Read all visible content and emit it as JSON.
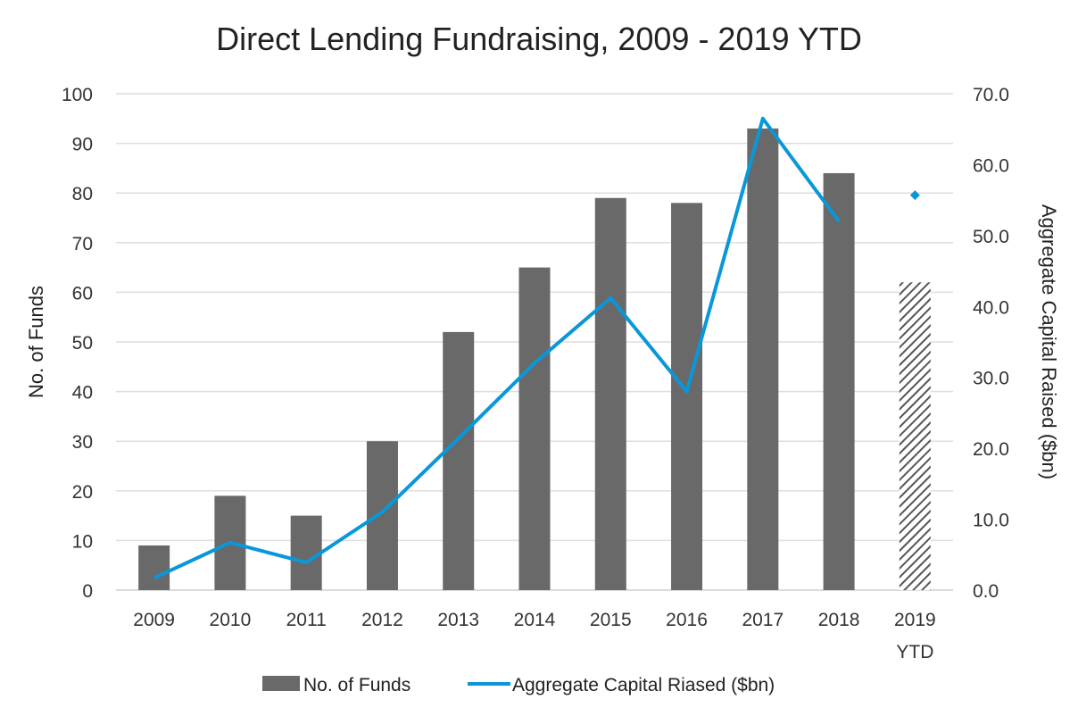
{
  "chart_data": {
    "type": "bar",
    "title": "Direct Lending Fundraising, 2009 - 2019 YTD",
    "categories": [
      [
        "2009"
      ],
      [
        "2010"
      ],
      [
        "2011"
      ],
      [
        "2012"
      ],
      [
        "2013"
      ],
      [
        "2014"
      ],
      [
        "2015"
      ],
      [
        "2016"
      ],
      [
        "2017"
      ],
      [
        "2018"
      ],
      [
        "2019",
        "YTD"
      ]
    ],
    "series": [
      {
        "name": "No. of Funds",
        "type": "bar",
        "axis": "left",
        "color": "#696969",
        "values": [
          9,
          19,
          15,
          30,
          52,
          65,
          79,
          78,
          93,
          84,
          62
        ],
        "hatched": [
          false,
          false,
          false,
          false,
          false,
          false,
          false,
          false,
          false,
          false,
          true
        ]
      },
      {
        "name": "Aggregate Capital Riased ($bn)",
        "type": "line",
        "axis": "right",
        "color": "#0a97d9",
        "values": [
          1.7,
          6.7,
          3.9,
          11.0,
          21.4,
          32.0,
          41.2,
          28.0,
          66.5,
          52.0,
          55.7
        ],
        "marker_only": [
          false,
          false,
          false,
          false,
          false,
          false,
          false,
          false,
          false,
          false,
          true
        ]
      }
    ],
    "ylabel_left": "No. of Funds",
    "ylabel_right": "Aggregate Capital Raised ($bn)",
    "ylim_left": [
      0,
      100
    ],
    "yticks_left": [
      "0",
      "10",
      "20",
      "30",
      "40",
      "50",
      "60",
      "70",
      "80",
      "90",
      "100"
    ],
    "ylim_right": [
      0,
      70
    ],
    "yticks_right": [
      "0.0",
      "10.0",
      "20.0",
      "30.0",
      "40.0",
      "50.0",
      "60.0",
      "70.0"
    ],
    "grid": true,
    "legend_position": "bottom"
  }
}
